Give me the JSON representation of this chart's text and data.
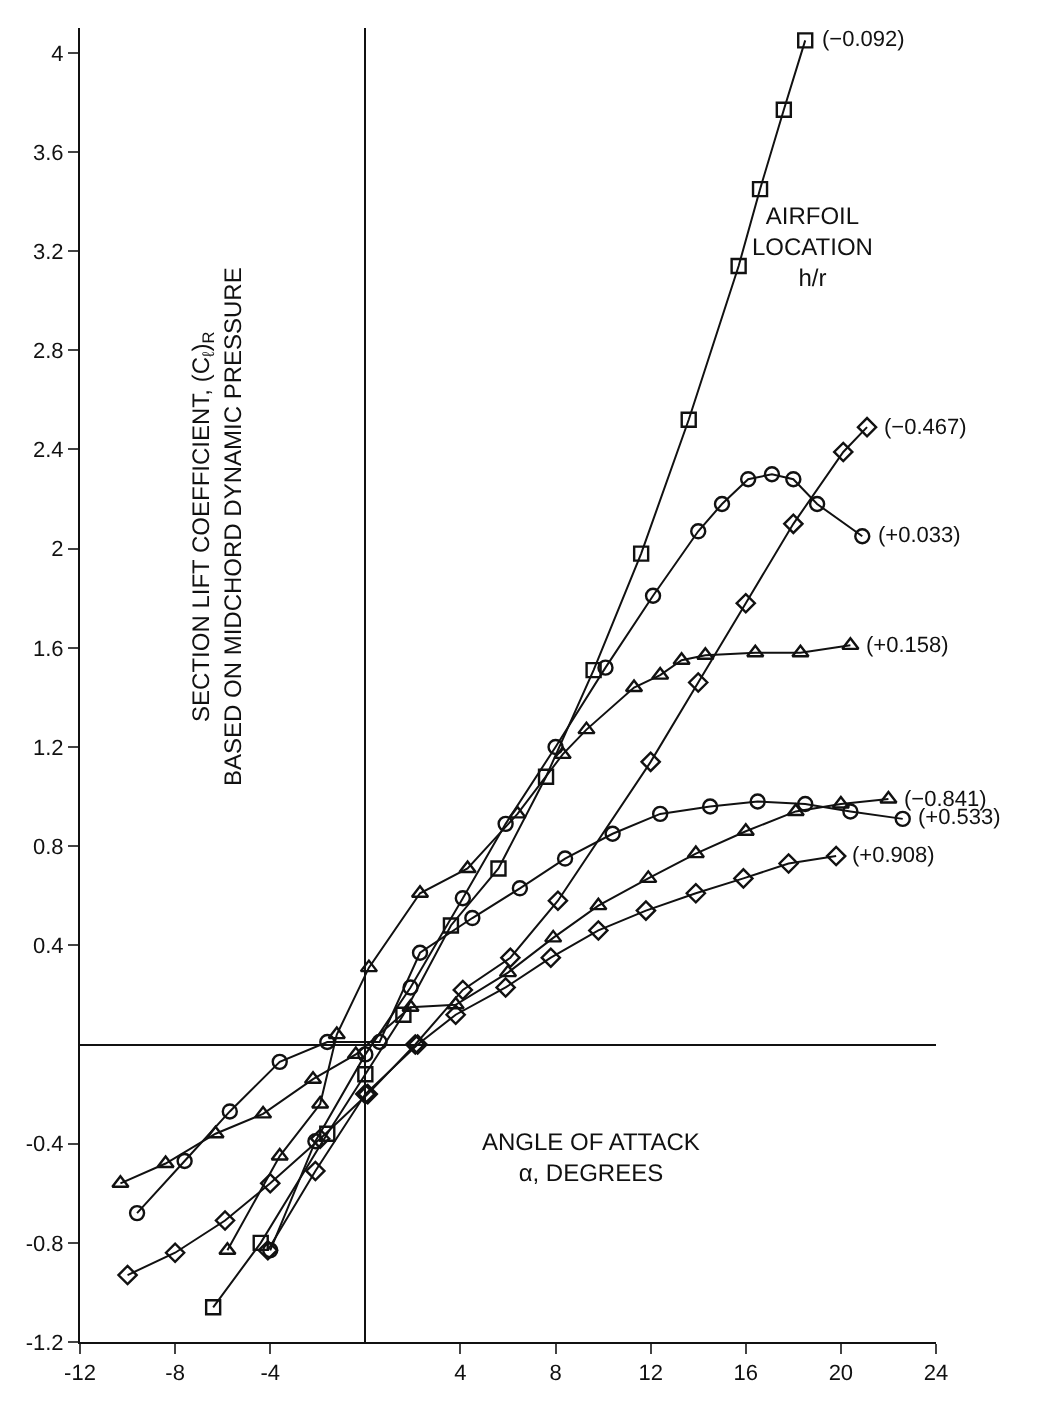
{
  "chart_data": {
    "type": "line",
    "xlabel": "ANGLE OF ATTACK\nα, DEGREES",
    "ylabel": "SECTION LIFT COEFFICIENT, (C$_{ℓ}$)$_{R}$\nBASED ON MIDCHORD DYNAMIC PRESSURE",
    "annotations": [
      "AIRFOIL\nLOCATION\nh/r"
    ],
    "xlim": [
      -12,
      24
    ],
    "xticks": [
      -12,
      -8,
      -4,
      4,
      8,
      12,
      16,
      20,
      24
    ],
    "ylim": [
      -1.2,
      4.1
    ],
    "yticks": [
      -1.2,
      -0.8,
      -0.4,
      0.4,
      0.8,
      1.2,
      1.6,
      2.0,
      2.4,
      2.8,
      3.2,
      3.6,
      4.0
    ],
    "grid": false,
    "legend": false,
    "line_style": "solid",
    "series": [
      {
        "name": "(−0.092)",
        "color": "#111111",
        "marker": "square",
        "x": [
          -6.4,
          -4.4,
          -1.6,
          0,
          1.6,
          3.6,
          5.6,
          7.6,
          9.6,
          11.6,
          13.6,
          15.7,
          16.6,
          17.6,
          18.5
        ],
        "values": [
          -1.06,
          -0.8,
          -0.36,
          -0.12,
          0.12,
          0.48,
          0.71,
          1.08,
          1.51,
          1.98,
          2.52,
          3.14,
          3.45,
          3.77,
          4.05
        ]
      },
      {
        "name": "(−0.467)",
        "color": "#111111",
        "marker": "diamond",
        "x": [
          -10,
          -8,
          -5.9,
          -4,
          -1.9,
          0.1,
          2.1,
          4.1,
          6.1,
          8.1,
          12,
          14,
          16,
          18,
          20.1,
          21.1
        ],
        "values": [
          -0.93,
          -0.84,
          -0.71,
          -0.56,
          -0.38,
          -0.2,
          0,
          0.22,
          0.35,
          0.58,
          1.14,
          1.46,
          1.78,
          2.1,
          2.39,
          2.49
        ]
      },
      {
        "name": "(+0.033)",
        "color": "#111111",
        "marker": "circle",
        "x": [
          -4,
          -2.1,
          0,
          1.9,
          4.1,
          5.9,
          8,
          10.1,
          12.1,
          14,
          15,
          16.1,
          17.1,
          18,
          19,
          20.9
        ],
        "values": [
          -0.83,
          -0.39,
          -0.04,
          0.23,
          0.59,
          0.89,
          1.2,
          1.52,
          1.81,
          2.07,
          2.18,
          2.28,
          2.3,
          2.28,
          2.18,
          2.05
        ]
      },
      {
        "name": "(+0.158)",
        "color": "#111111",
        "marker": "triangle",
        "x": [
          -5.8,
          -3.6,
          -1.9,
          -1.2,
          0.15,
          2.3,
          4.3,
          6.4,
          8.3,
          9.3,
          11.3,
          12.4,
          13.3,
          14.3,
          16.4,
          18.3,
          20.4
        ],
        "values": [
          -0.83,
          -0.45,
          -0.24,
          0.04,
          0.31,
          0.61,
          0.71,
          0.93,
          1.17,
          1.27,
          1.44,
          1.49,
          1.55,
          1.57,
          1.58,
          1.58,
          1.61
        ]
      },
      {
        "name": "(−0.841)",
        "color": "#111111",
        "marker": "triangle",
        "x": [
          -10.3,
          -8.4,
          -6.3,
          -4.3,
          -2.2,
          -0.4,
          1.9,
          3.8,
          6,
          7.9,
          9.8,
          11.9,
          13.9,
          16,
          18.1,
          20,
          22
        ],
        "values": [
          -0.56,
          -0.48,
          -0.36,
          -0.28,
          -0.14,
          -0.04,
          0.15,
          0.16,
          0.29,
          0.43,
          0.56,
          0.67,
          0.77,
          0.86,
          0.94,
          0.97,
          0.99
        ]
      },
      {
        "name": "(+0.533)",
        "color": "#111111",
        "marker": "circle",
        "x": [
          -9.6,
          -7.6,
          -5.7,
          -3.6,
          -1.6,
          0.6,
          2.3,
          4.5,
          6.5,
          8.4,
          10.4,
          12.4,
          14.5,
          16.5,
          18.5,
          20.4,
          22.6
        ],
        "values": [
          -0.68,
          -0.47,
          -0.27,
          -0.07,
          0.01,
          0.01,
          0.37,
          0.51,
          0.63,
          0.75,
          0.85,
          0.93,
          0.96,
          0.98,
          0.97,
          0.94,
          0.91
        ]
      },
      {
        "name": "(+0.908)",
        "color": "#111111",
        "marker": "diamond",
        "x": [
          -4.1,
          -2.1,
          0,
          2.2,
          3.8,
          5.9,
          7.8,
          9.8,
          11.8,
          13.9,
          15.9,
          17.8,
          19.8
        ],
        "values": [
          -0.83,
          -0.51,
          -0.2,
          0,
          0.12,
          0.23,
          0.35,
          0.46,
          0.54,
          0.61,
          0.67,
          0.73,
          0.76
        ]
      }
    ]
  }
}
